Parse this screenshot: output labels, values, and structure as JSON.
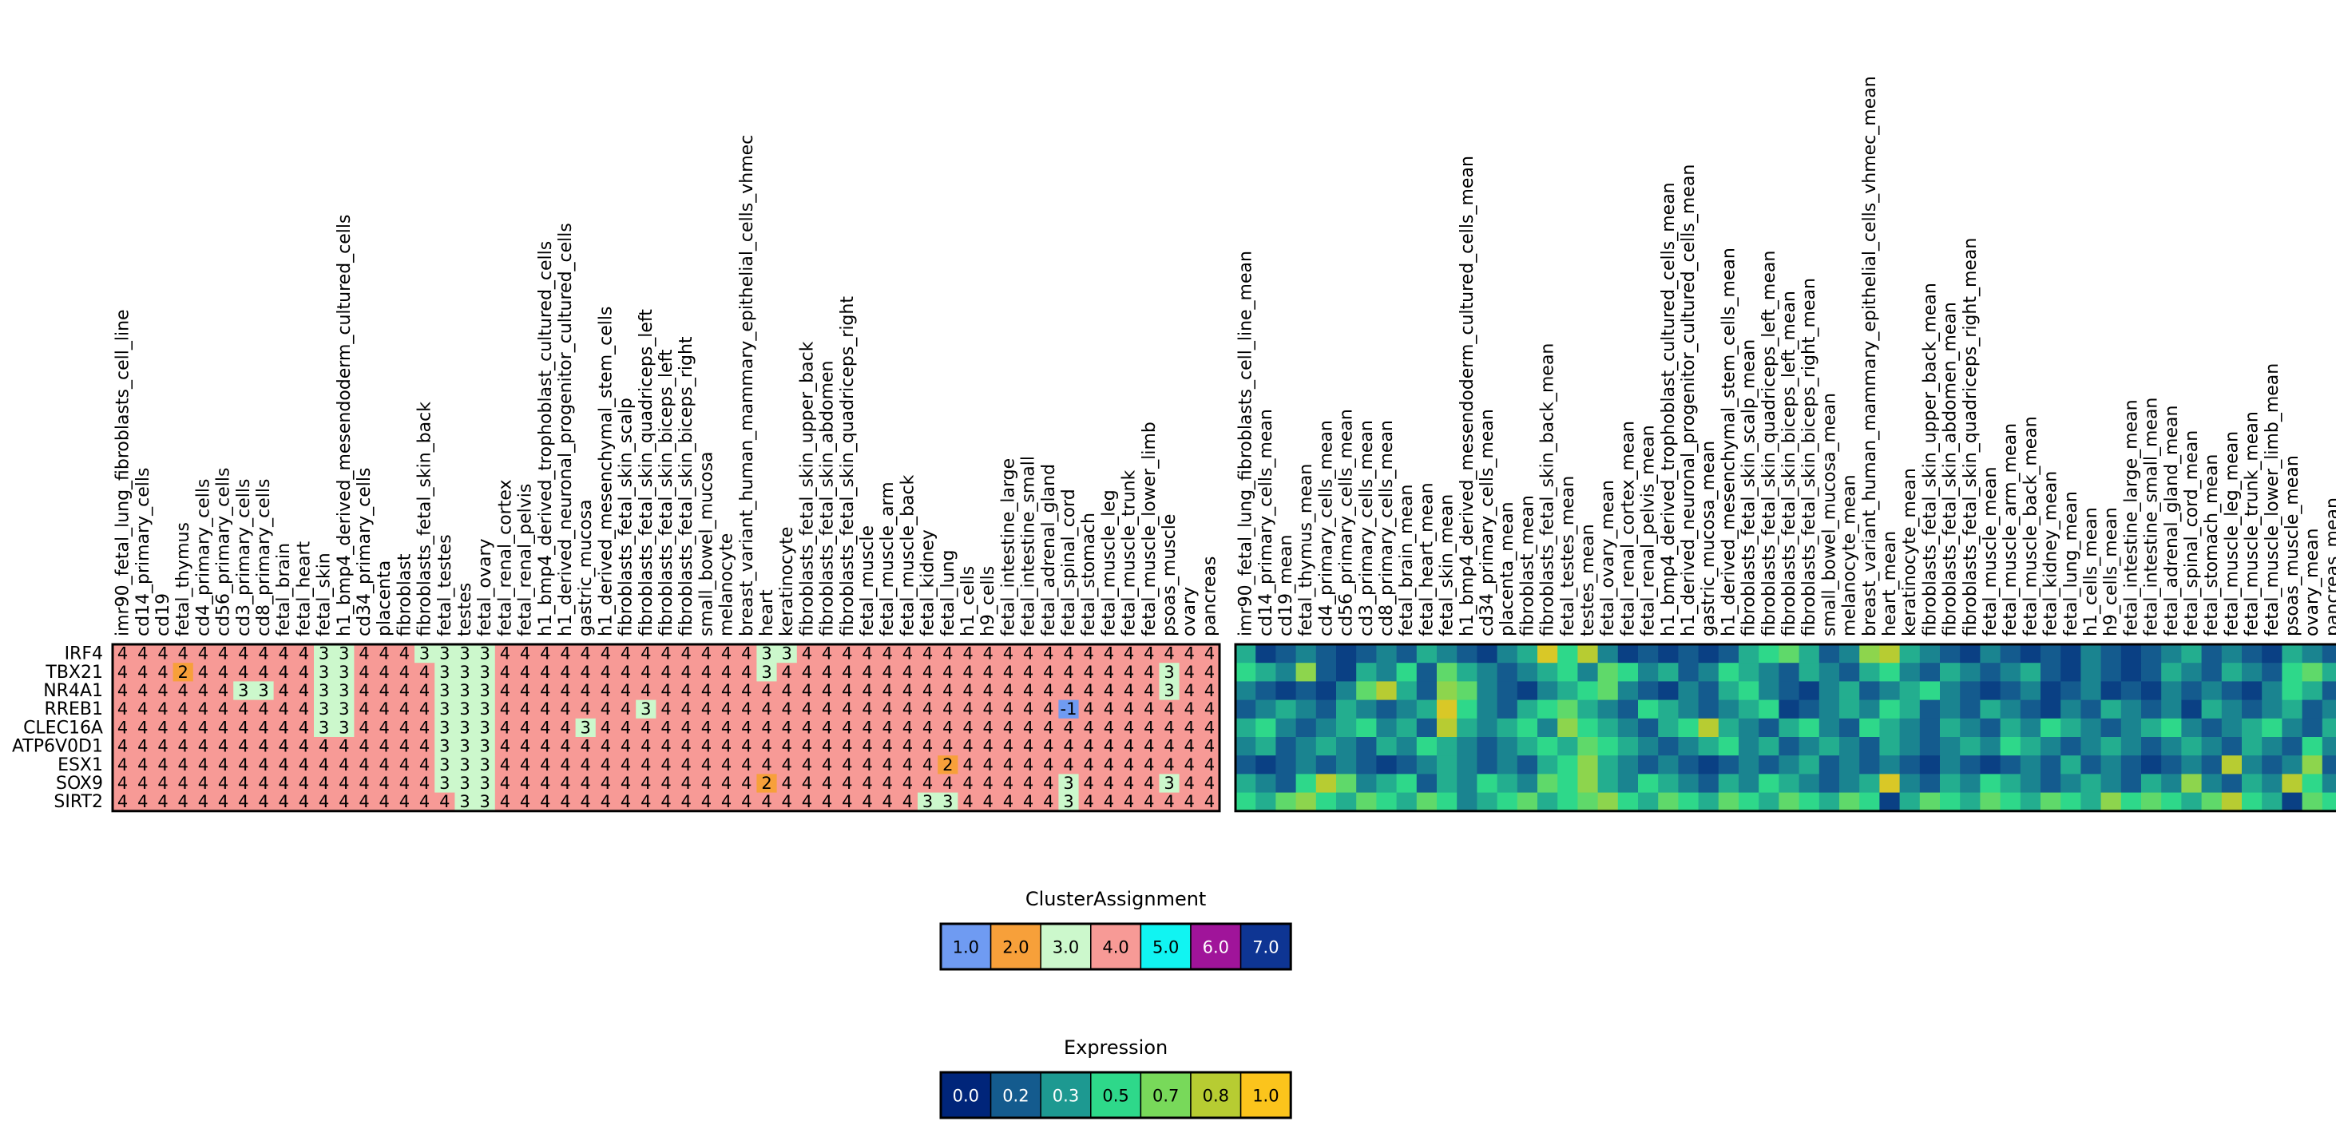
{
  "chart_data": [
    {
      "type": "heatmap",
      "title": "",
      "rows": [
        "IRF4",
        "TBX21",
        "NR4A1",
        "RREB1",
        "CLEC16A",
        "ATP6V0D1",
        "ESX1",
        "SOX9",
        "SIRT2"
      ],
      "columns": [
        "imr90_fetal_lung_fibroblasts_cell_line",
        "cd14_primary_cells",
        "cd19",
        "fetal_thymus",
        "cd4_primary_cells",
        "cd56_primary_cells",
        "cd3_primary_cells",
        "cd8_primary_cells",
        "fetal_brain",
        "fetal_heart",
        "fetal_skin",
        "h1_bmp4_derived_mesendoderm_cultured_cells",
        "cd34_primary_cells",
        "placenta",
        "fibroblast",
        "fibroblasts_fetal_skin_back",
        "fetal_testes",
        "testes",
        "fetal_ovary",
        "fetal_renal_cortex",
        "fetal_renal_pelvis",
        "h1_bmp4_derived_trophoblast_cultured_cells",
        "h1_derived_neuronal_progenitor_cultured_cells",
        "gastric_mucosa",
        "h1_derived_mesenchymal_stem_cells",
        "fibroblasts_fetal_skin_scalp",
        "fibroblasts_fetal_skin_quadriceps_left",
        "fibroblasts_fetal_skin_biceps_left",
        "fibroblasts_fetal_skin_biceps_right",
        "small_bowel_mucosa",
        "melanocyte",
        "breast_variant_human_mammary_epithelial_cells_vhmec",
        "heart",
        "keratinocyte",
        "fibroblasts_fetal_skin_upper_back",
        "fibroblasts_fetal_skin_abdomen",
        "fibroblasts_fetal_skin_quadriceps_right",
        "fetal_muscle",
        "fetal_muscle_arm",
        "fetal_muscle_back",
        "fetal_kidney",
        "fetal_lung",
        "h1_cells",
        "h9_cells",
        "fetal_intestine_large",
        "fetal_intestine_small",
        "fetal_adrenal_gland",
        "fetal_spinal_cord",
        "fetal_stomach",
        "fetal_muscle_leg",
        "fetal_muscle_trunk",
        "fetal_muscle_lower_limb",
        "psoas_muscle",
        "ovary",
        "pancreas"
      ],
      "values": [
        [
          4,
          4,
          4,
          4,
          4,
          4,
          4,
          4,
          4,
          4,
          3,
          3,
          4,
          4,
          4,
          3,
          3,
          3,
          3,
          4,
          4,
          4,
          4,
          4,
          4,
          4,
          4,
          4,
          4,
          4,
          4,
          4,
          3,
          3,
          4,
          4,
          4,
          4,
          4,
          4,
          4,
          4,
          4,
          4,
          4,
          4,
          4,
          4,
          4,
          4,
          4,
          4,
          4,
          4,
          4
        ],
        [
          4,
          4,
          4,
          2,
          4,
          4,
          4,
          4,
          4,
          4,
          3,
          3,
          4,
          4,
          4,
          4,
          3,
          3,
          3,
          4,
          4,
          4,
          4,
          4,
          4,
          4,
          4,
          4,
          4,
          4,
          4,
          4,
          3,
          4,
          4,
          4,
          4,
          4,
          4,
          4,
          4,
          4,
          4,
          4,
          4,
          4,
          4,
          4,
          4,
          4,
          4,
          4,
          3,
          4,
          4
        ],
        [
          4,
          4,
          4,
          4,
          4,
          4,
          3,
          3,
          4,
          4,
          3,
          3,
          4,
          4,
          4,
          4,
          3,
          3,
          3,
          4,
          4,
          4,
          4,
          4,
          4,
          4,
          4,
          4,
          4,
          4,
          4,
          4,
          4,
          4,
          4,
          4,
          4,
          4,
          4,
          4,
          4,
          4,
          4,
          4,
          4,
          4,
          4,
          4,
          4,
          4,
          4,
          4,
          3,
          4,
          4
        ],
        [
          4,
          4,
          4,
          4,
          4,
          4,
          4,
          4,
          4,
          4,
          3,
          3,
          4,
          4,
          4,
          4,
          3,
          3,
          3,
          4,
          4,
          4,
          4,
          4,
          4,
          4,
          3,
          4,
          4,
          4,
          4,
          4,
          4,
          4,
          4,
          4,
          4,
          4,
          4,
          4,
          4,
          4,
          4,
          4,
          4,
          4,
          4,
          -1,
          4,
          4,
          4,
          4,
          4,
          4,
          4
        ],
        [
          4,
          4,
          4,
          4,
          4,
          4,
          4,
          4,
          4,
          4,
          3,
          3,
          4,
          4,
          4,
          4,
          3,
          3,
          3,
          4,
          4,
          4,
          4,
          3,
          4,
          4,
          4,
          4,
          4,
          4,
          4,
          4,
          4,
          4,
          4,
          4,
          4,
          4,
          4,
          4,
          4,
          4,
          4,
          4,
          4,
          4,
          4,
          4,
          4,
          4,
          4,
          4,
          4,
          4,
          4
        ],
        [
          4,
          4,
          4,
          4,
          4,
          4,
          4,
          4,
          4,
          4,
          4,
          4,
          4,
          4,
          4,
          4,
          3,
          3,
          3,
          4,
          4,
          4,
          4,
          4,
          4,
          4,
          4,
          4,
          4,
          4,
          4,
          4,
          4,
          4,
          4,
          4,
          4,
          4,
          4,
          4,
          4,
          4,
          4,
          4,
          4,
          4,
          4,
          4,
          4,
          4,
          4,
          4,
          4,
          4,
          4
        ],
        [
          4,
          4,
          4,
          4,
          4,
          4,
          4,
          4,
          4,
          4,
          4,
          4,
          4,
          4,
          4,
          4,
          3,
          3,
          3,
          4,
          4,
          4,
          4,
          4,
          4,
          4,
          4,
          4,
          4,
          4,
          4,
          4,
          4,
          4,
          4,
          4,
          4,
          4,
          4,
          4,
          4,
          2,
          4,
          4,
          4,
          4,
          4,
          4,
          4,
          4,
          4,
          4,
          4,
          4,
          4
        ],
        [
          4,
          4,
          4,
          4,
          4,
          4,
          4,
          4,
          4,
          4,
          4,
          4,
          4,
          4,
          4,
          4,
          3,
          3,
          3,
          4,
          4,
          4,
          4,
          4,
          4,
          4,
          4,
          4,
          4,
          4,
          4,
          4,
          2,
          4,
          4,
          4,
          4,
          4,
          4,
          4,
          4,
          4,
          4,
          4,
          4,
          4,
          4,
          3,
          4,
          4,
          4,
          4,
          3,
          4,
          4
        ],
        [
          4,
          4,
          4,
          4,
          4,
          4,
          4,
          4,
          4,
          4,
          4,
          4,
          4,
          4,
          4,
          4,
          4,
          3,
          3,
          4,
          4,
          4,
          4,
          4,
          4,
          4,
          4,
          4,
          4,
          4,
          4,
          4,
          4,
          4,
          4,
          4,
          4,
          4,
          4,
          4,
          3,
          3,
          4,
          4,
          4,
          4,
          4,
          3,
          4,
          4,
          4,
          4,
          4,
          4,
          4
        ]
      ],
      "legend": {
        "title": "ClusterAssignment",
        "labels": [
          "1.0",
          "2.0",
          "3.0",
          "4.0",
          "5.0",
          "6.0",
          "7.0"
        ],
        "colors": [
          "#6f9bf2",
          "#f7a03a",
          "#ccf8cc",
          "#f79a96",
          "#11f4f2",
          "#a0149a",
          "#0e3593"
        ]
      }
    },
    {
      "type": "heatmap",
      "title": "",
      "rows": [
        "IRF4",
        "TBX21",
        "NR4A1",
        "RREB1",
        "CLEC16A",
        "ATP6V0D1",
        "ESX1",
        "SOX9",
        "SIRT2"
      ],
      "columns": [
        "imr90_fetal_lung_fibroblasts_cell_line_mean",
        "cd14_primary_cells_mean",
        "cd19_mean",
        "fetal_thymus_mean",
        "cd4_primary_cells_mean",
        "cd56_primary_cells_mean",
        "cd3_primary_cells_mean",
        "cd8_primary_cells_mean",
        "fetal_brain_mean",
        "fetal_heart_mean",
        "fetal_skin_mean",
        "h1_bmp4_derived_mesendoderm_cultured_cells_mean",
        "cd34_primary_cells_mean",
        "placenta_mean",
        "fibroblast_mean",
        "fibroblasts_fetal_skin_back_mean",
        "fetal_testes_mean",
        "testes_mean",
        "fetal_ovary_mean",
        "fetal_renal_cortex_mean",
        "fetal_renal_pelvis_mean",
        "h1_bmp4_derived_trophoblast_cultured_cells_mean",
        "h1_derived_neuronal_progenitor_cultured_cells_mean",
        "gastric_mucosa_mean",
        "h1_derived_mesenchymal_stem_cells_mean",
        "fibroblasts_fetal_skin_scalp_mean",
        "fibroblasts_fetal_skin_quadriceps_left_mean",
        "fibroblasts_fetal_skin_biceps_left_mean",
        "fibroblasts_fetal_skin_biceps_right_mean",
        "small_bowel_mucosa_mean",
        "melanocyte_mean",
        "breast_variant_human_mammary_epithelial_cells_vhmec_mean",
        "heart_mean",
        "keratinocyte_mean",
        "fibroblasts_fetal_skin_upper_back_mean",
        "fibroblasts_fetal_skin_abdomen_mean",
        "fibroblasts_fetal_skin_quadriceps_right_mean",
        "fetal_muscle_mean",
        "fetal_muscle_arm_mean",
        "fetal_muscle_back_mean",
        "fetal_kidney_mean",
        "fetal_lung_mean",
        "h1_cells_mean",
        "h9_cells_mean",
        "fetal_intestine_large_mean",
        "fetal_intestine_small_mean",
        "fetal_adrenal_gland_mean",
        "fetal_spinal_cord_mean",
        "fetal_stomach_mean",
        "fetal_muscle_leg_mean",
        "fetal_muscle_trunk_mean",
        "fetal_muscle_lower_limb_mean",
        "psoas_muscle_mean",
        "ovary_mean",
        "pancreas_mean"
      ],
      "values": [
        [
          0.4,
          0.1,
          0.2,
          0.3,
          0.2,
          0.1,
          0.2,
          0.3,
          0.2,
          0.4,
          0.3,
          0.2,
          0.1,
          0.3,
          0.4,
          0.9,
          0.5,
          0.8,
          0.3,
          0.1,
          0.2,
          0.1,
          0.2,
          0.1,
          0.2,
          0.4,
          0.5,
          0.6,
          0.4,
          0.2,
          0.3,
          0.7,
          0.8,
          0.4,
          0.3,
          0.2,
          0.1,
          0.3,
          0.2,
          0.1,
          0.2,
          0.1,
          0.3,
          0.2,
          0.1,
          0.2,
          0.3,
          0.4,
          0.2,
          0.3,
          0.2,
          0.1,
          0.4,
          0.3,
          0.2
        ],
        [
          0.5,
          0.4,
          0.3,
          0.7,
          0.2,
          0.1,
          0.4,
          0.3,
          0.5,
          0.2,
          0.6,
          0.4,
          0.3,
          0.2,
          0.3,
          0.4,
          0.5,
          0.3,
          0.6,
          0.5,
          0.3,
          0.4,
          0.2,
          0.3,
          0.5,
          0.4,
          0.3,
          0.2,
          0.4,
          0.3,
          0.2,
          0.4,
          0.5,
          0.3,
          0.2,
          0.4,
          0.3,
          0.2,
          0.3,
          0.4,
          0.2,
          0.1,
          0.3,
          0.2,
          0.1,
          0.2,
          0.4,
          0.3,
          0.2,
          0.4,
          0.3,
          0.2,
          0.5,
          0.6,
          0.4
        ],
        [
          0.3,
          0.2,
          0.1,
          0.2,
          0.1,
          0.3,
          0.6,
          0.8,
          0.4,
          0.2,
          0.7,
          0.6,
          0.3,
          0.2,
          0.1,
          0.3,
          0.4,
          0.5,
          0.6,
          0.3,
          0.2,
          0.1,
          0.3,
          0.2,
          0.4,
          0.5,
          0.3,
          0.2,
          0.1,
          0.3,
          0.4,
          0.2,
          0.3,
          0.4,
          0.5,
          0.3,
          0.2,
          0.1,
          0.2,
          0.3,
          0.1,
          0.2,
          0.3,
          0.1,
          0.2,
          0.1,
          0.3,
          0.2,
          0.3,
          0.2,
          0.1,
          0.3,
          0.5,
          0.4,
          0.2
        ],
        [
          0.2,
          0.3,
          0.4,
          0.3,
          0.2,
          0.4,
          0.3,
          0.2,
          0.3,
          0.4,
          0.9,
          0.5,
          0.3,
          0.2,
          0.4,
          0.5,
          0.6,
          0.4,
          0.3,
          0.2,
          0.5,
          0.4,
          0.3,
          0.2,
          0.3,
          0.4,
          0.5,
          0.1,
          0.2,
          0.3,
          0.4,
          0.3,
          0.5,
          0.4,
          0.2,
          0.3,
          0.2,
          0.4,
          0.3,
          0.2,
          0.1,
          0.3,
          0.2,
          0.4,
          0.3,
          0.2,
          0.3,
          0.1,
          0.4,
          0.3,
          0.2,
          0.3,
          0.4,
          0.2,
          0.3
        ],
        [
          0.4,
          0.5,
          0.3,
          0.2,
          0.3,
          0.4,
          0.5,
          0.3,
          0.4,
          0.2,
          0.8,
          0.4,
          0.3,
          0.4,
          0.5,
          0.3,
          0.7,
          0.5,
          0.4,
          0.3,
          0.2,
          0.4,
          0.5,
          0.8,
          0.4,
          0.3,
          0.2,
          0.4,
          0.5,
          0.3,
          0.2,
          0.5,
          0.4,
          0.3,
          0.2,
          0.4,
          0.3,
          0.2,
          0.4,
          0.3,
          0.5,
          0.4,
          0.3,
          0.2,
          0.3,
          0.4,
          0.5,
          0.3,
          0.2,
          0.3,
          0.4,
          0.5,
          0.3,
          0.2,
          0.4
        ],
        [
          0.3,
          0.4,
          0.2,
          0.3,
          0.4,
          0.3,
          0.2,
          0.4,
          0.3,
          0.5,
          0.4,
          0.3,
          0.2,
          0.3,
          0.4,
          0.5,
          0.4,
          0.6,
          0.5,
          0.4,
          0.3,
          0.2,
          0.3,
          0.4,
          0.5,
          0.3,
          0.4,
          0.2,
          0.3,
          0.4,
          0.3,
          0.2,
          0.4,
          0.3,
          0.2,
          0.3,
          0.4,
          0.3,
          0.5,
          0.4,
          0.3,
          0.2,
          0.3,
          0.4,
          0.3,
          0.2,
          0.3,
          0.4,
          0.3,
          0.2,
          0.4,
          0.3,
          0.2,
          0.5,
          0.3
        ],
        [
          0.2,
          0.1,
          0.2,
          0.3,
          0.2,
          0.3,
          0.2,
          0.1,
          0.2,
          0.3,
          0.4,
          0.3,
          0.2,
          0.3,
          0.2,
          0.4,
          0.5,
          0.7,
          0.4,
          0.3,
          0.2,
          0.3,
          0.2,
          0.1,
          0.2,
          0.3,
          0.2,
          0.3,
          0.4,
          0.2,
          0.3,
          0.2,
          0.3,
          0.2,
          0.1,
          0.3,
          0.2,
          0.1,
          0.2,
          0.3,
          0.2,
          0.4,
          0.2,
          0.3,
          0.2,
          0.1,
          0.2,
          0.3,
          0.2,
          0.8,
          0.3,
          0.2,
          0.3,
          0.7,
          0.2
        ],
        [
          0.4,
          0.3,
          0.2,
          0.5,
          0.8,
          0.6,
          0.3,
          0.4,
          0.5,
          0.2,
          0.4,
          0.3,
          0.5,
          0.4,
          0.3,
          0.6,
          0.5,
          0.7,
          0.4,
          0.3,
          0.5,
          0.4,
          0.3,
          0.2,
          0.4,
          0.3,
          0.5,
          0.4,
          0.3,
          0.2,
          0.3,
          0.4,
          0.9,
          0.3,
          0.2,
          0.4,
          0.3,
          0.5,
          0.4,
          0.3,
          0.2,
          0.3,
          0.4,
          0.3,
          0.2,
          0.4,
          0.3,
          0.7,
          0.3,
          0.2,
          0.4,
          0.3,
          0.8,
          0.5,
          0.3
        ],
        [
          0.5,
          0.4,
          0.6,
          0.7,
          0.5,
          0.4,
          0.6,
          0.5,
          0.4,
          0.6,
          0.5,
          0.3,
          0.4,
          0.5,
          0.6,
          0.4,
          0.5,
          0.6,
          0.7,
          0.5,
          0.4,
          0.6,
          0.5,
          0.4,
          0.6,
          0.5,
          0.4,
          0.6,
          0.5,
          0.4,
          0.6,
          0.5,
          0.1,
          0.4,
          0.6,
          0.5,
          0.4,
          0.6,
          0.5,
          0.4,
          0.6,
          0.5,
          0.4,
          0.7,
          0.5,
          0.6,
          0.5,
          0.4,
          0.6,
          0.8,
          0.5,
          0.4,
          0.1,
          0.6,
          0.5
        ]
      ],
      "legend": {
        "title": "Expression",
        "labels": [
          "0.0",
          "0.2",
          "0.3",
          "0.5",
          "0.7",
          "0.8",
          "1.0"
        ],
        "colors": [
          "#00257a",
          "#145b8e",
          "#1d9991",
          "#2ed88a",
          "#78d95a",
          "#b7cc32",
          "#fbc41c"
        ]
      }
    }
  ]
}
